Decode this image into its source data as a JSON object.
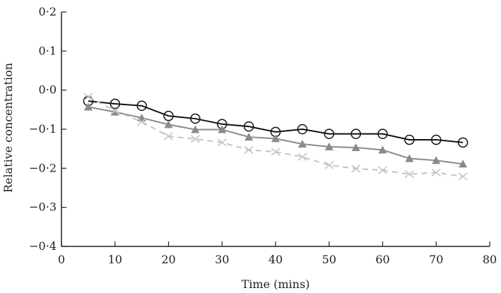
{
  "chart_data": {
    "type": "line",
    "title": "",
    "xlabel": "Time (mins)",
    "ylabel": "Relative concentration",
    "xlim": [
      0,
      80
    ],
    "ylim": [
      -0.4,
      0.2
    ],
    "xticks": [
      0,
      10,
      20,
      30,
      40,
      50,
      60,
      70,
      80
    ],
    "xtick_labels": [
      "0",
      "10",
      "20",
      "30",
      "40",
      "50",
      "60",
      "70",
      "80"
    ],
    "yticks": [
      0.2,
      0.1,
      0.0,
      -0.1,
      -0.2,
      -0.3,
      -0.4
    ],
    "ytick_labels": [
      "0·2",
      "0·1",
      "0·0",
      "−0·1",
      "−0·2",
      "−0·3",
      "−0·4"
    ],
    "grid": false,
    "x": [
      5,
      10,
      15,
      20,
      25,
      30,
      35,
      40,
      45,
      50,
      55,
      60,
      65,
      70,
      75
    ],
    "series": [
      {
        "name": "circle",
        "marker": "circle",
        "color": "#111111",
        "dash": false,
        "values": [
          -0.028,
          -0.035,
          -0.04,
          -0.066,
          -0.073,
          -0.087,
          -0.093,
          -0.107,
          -0.1,
          -0.112,
          -0.112,
          -0.112,
          -0.127,
          -0.127,
          -0.134
        ]
      },
      {
        "name": "triangle",
        "marker": "triangle",
        "color": "#8a8a8a",
        "dash": false,
        "values": [
          -0.043,
          -0.056,
          -0.071,
          -0.088,
          -0.101,
          -0.101,
          -0.12,
          -0.124,
          -0.138,
          -0.145,
          -0.147,
          -0.153,
          -0.175,
          -0.18,
          -0.189
        ]
      },
      {
        "name": "cross",
        "marker": "cross",
        "color": "#c4c4c4",
        "dash": true,
        "values": [
          -0.017,
          -0.053,
          -0.081,
          -0.118,
          -0.125,
          -0.134,
          -0.153,
          -0.158,
          -0.171,
          -0.192,
          -0.201,
          -0.205,
          -0.215,
          -0.211,
          -0.221
        ]
      }
    ]
  }
}
